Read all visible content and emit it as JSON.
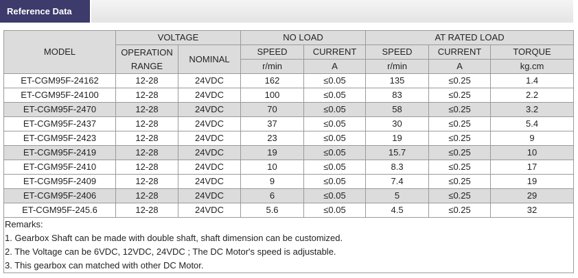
{
  "header": {
    "title": "Reference Data"
  },
  "table": {
    "group_headers": {
      "model": "MODEL",
      "voltage": "VOLTAGE",
      "no_load": "NO LOAD",
      "rated_load": "AT RATED LOAD"
    },
    "column_headers": {
      "operation_range": "OPERATION RANGE",
      "nominal": "NOMINAL",
      "speed_1": "SPEED",
      "current_1": "CURRENT",
      "speed_2": "SPEED",
      "current_2": "CURRENT",
      "torque": "TORQUE"
    },
    "units": [
      "r/min",
      "A",
      "r/min",
      "A",
      "kg.cm"
    ],
    "rows": [
      [
        "ET-CGM95F-24162",
        "12-28",
        "24VDC",
        "162",
        "≤0.05",
        "135",
        "≤0.25",
        "1.4"
      ],
      [
        "ET-CGM95F-24100",
        "12-28",
        "24VDC",
        "100",
        "≤0.05",
        "83",
        "≤0.25",
        "2.2"
      ],
      [
        "ET-CGM95F-2470",
        "12-28",
        "24VDC",
        "70",
        "≤0.05",
        "58",
        "≤0.25",
        "3.2"
      ],
      [
        "ET-CGM95F-2437",
        "12-28",
        "24VDC",
        "37",
        "≤0.05",
        "30",
        "≤0.25",
        "5.4"
      ],
      [
        "ET-CGM95F-2423",
        "12-28",
        "24VDC",
        "23",
        "≤0.05",
        "19",
        "≤0.25",
        "9"
      ],
      [
        "ET-CGM95F-2419",
        "12-28",
        "24VDC",
        "19",
        "≤0.05",
        "15.7",
        "≤0.25",
        "10"
      ],
      [
        "ET-CGM95F-2410",
        "12-28",
        "24VDC",
        "10",
        "≤0.05",
        "8.3",
        "≤0.25",
        "17"
      ],
      [
        "ET-CGM95F-2409",
        "12-28",
        "24VDC",
        "9",
        "≤0.05",
        "7.4",
        "≤0.25",
        "19"
      ],
      [
        "ET-CGM95F-2406",
        "12-28",
        "24VDC",
        "6",
        "≤0.05",
        "5",
        "≤0.25",
        "29"
      ],
      [
        "ET-CGM95F-245.6",
        "12-28",
        "24VDC",
        "5.6",
        "≤0.05",
        "4.5",
        "≤0.25",
        "32"
      ]
    ]
  },
  "remarks": {
    "title": "Remarks:",
    "items": [
      "1. Gearbox Shaft can be made with double shaft, shaft dimension can be customized.",
      "2. The Voltage can be 6VDC, 12VDC, 24VDC ; The DC Motor's speed is adjustable.",
      "3. This gearbox can matched with other DC Motor."
    ]
  }
}
